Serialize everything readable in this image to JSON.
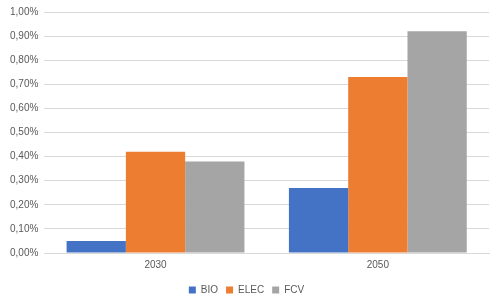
{
  "chart_data": {
    "type": "bar",
    "categories": [
      "2030",
      "2050"
    ],
    "series": [
      {
        "name": "BIO",
        "color": "#4472c4",
        "values": [
          0.05,
          0.27
        ]
      },
      {
        "name": "ELEC",
        "color": "#ed7d31",
        "values": [
          0.42,
          0.73
        ]
      },
      {
        "name": "FCV",
        "color": "#a5a5a5",
        "values": [
          0.38,
          0.92
        ]
      }
    ],
    "ylim": [
      0,
      1
    ],
    "yticks": [
      {
        "value": 0,
        "label": "0,00%"
      },
      {
        "value": 0.1,
        "label": "0,10%"
      },
      {
        "value": 0.2,
        "label": "0,20%"
      },
      {
        "value": 0.3,
        "label": "0,30%"
      },
      {
        "value": 0.4,
        "label": "0,40%"
      },
      {
        "value": 0.5,
        "label": "0,50%"
      },
      {
        "value": 0.6,
        "label": "0,60%"
      },
      {
        "value": 0.7,
        "label": "0,70%"
      },
      {
        "value": 0.8,
        "label": "0,80%"
      },
      {
        "value": 0.9,
        "label": "0,90%"
      },
      {
        "value": 1,
        "label": "1,00%"
      }
    ],
    "grid": true,
    "legend": "bottom"
  }
}
